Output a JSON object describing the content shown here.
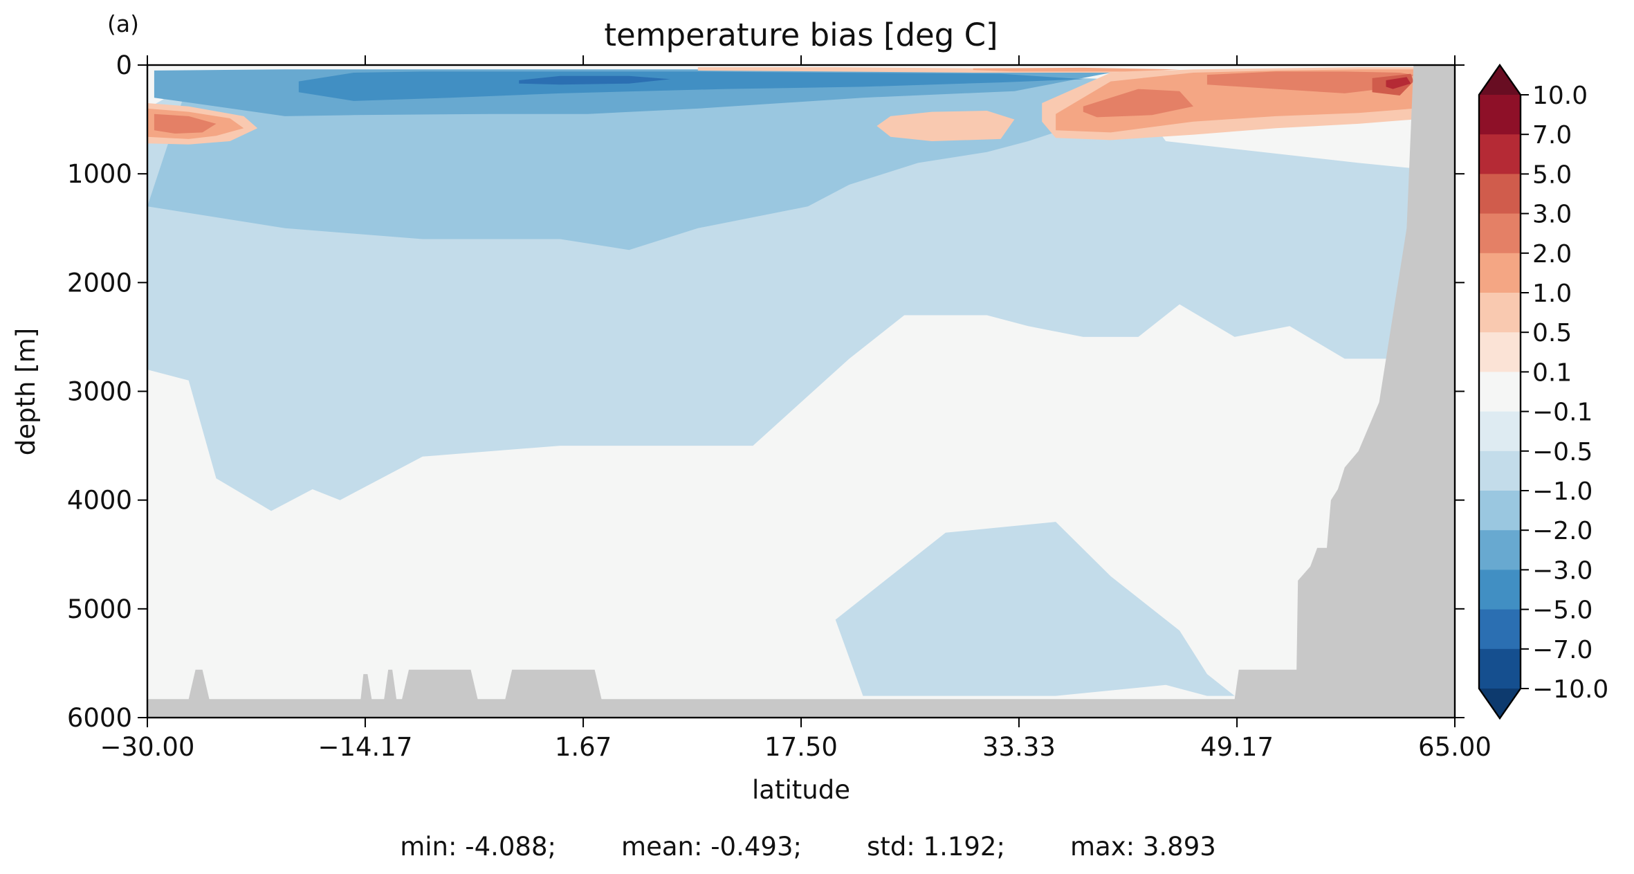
{
  "panel_label": "(a)",
  "chart_data": {
    "type": "heatmap",
    "subtype": "filled-contour",
    "title": "temperature bias [deg C]",
    "xlabel": "latitude",
    "ylabel": "depth [m]",
    "xlim": [
      -30.0,
      65.0
    ],
    "ylim": [
      6000,
      0
    ],
    "x_ticks": [
      "−30.00",
      "−14.17",
      "1.67",
      "17.50",
      "33.33",
      "49.17",
      "65.00"
    ],
    "x_tick_values": [
      -30.0,
      -14.17,
      1.67,
      17.5,
      33.33,
      49.17,
      65.0
    ],
    "y_ticks": [
      "0",
      "1000",
      "2000",
      "3000",
      "4000",
      "5000",
      "6000"
    ],
    "y_tick_values": [
      0,
      1000,
      2000,
      3000,
      4000,
      5000,
      6000
    ],
    "colorbar": {
      "levels": [
        -10.0,
        -7.0,
        -5.0,
        -3.0,
        -2.0,
        -1.0,
        -0.5,
        -0.1,
        0.1,
        0.5,
        1.0,
        2.0,
        3.0,
        5.0,
        7.0,
        10.0
      ],
      "labels": [
        "10.0",
        "7.0",
        "5.0",
        "3.0",
        "2.0",
        "1.0",
        "0.5",
        "0.1",
        "−0.1",
        "−0.5",
        "−1.0",
        "−2.0",
        "−3.0",
        "−5.0",
        "−7.0",
        "−10.0"
      ],
      "colors": [
        "#0d3a6e",
        "#154f8f",
        "#2b6fb2",
        "#418fc3",
        "#68a9d0",
        "#9ac7e0",
        "#c3dcea",
        "#deebf2",
        "#f5f6f5",
        "#fbe3d6",
        "#f9c9b0",
        "#f4a684",
        "#e48066",
        "#d05c4c",
        "#b52a35",
        "#8e1028",
        "#680d22"
      ],
      "extend": "both"
    },
    "regions": [
      {
        "bias_class": "-0.5",
        "lat": [
          -30,
          -27,
          -10,
          10,
          22,
          33,
          41,
          44,
          58,
          62,
          62,
          57,
          53,
          49,
          45,
          42,
          38,
          34,
          31,
          25,
          21,
          14,
          0,
          -10,
          -16,
          -18,
          -21,
          -25,
          -27,
          -30
        ],
        "depth": [
          400,
          180,
          150,
          150,
          150,
          150,
          180,
          700,
          900,
          950,
          2700,
          2700,
          2400,
          2500,
          2200,
          2500,
          2500,
          2400,
          2300,
          2300,
          2700,
          3500,
          3500,
          3600,
          4000,
          3900,
          4100,
          3800,
          2900,
          2800
        ]
      },
      {
        "bias_class": "-0.5",
        "lat": [
          20,
          28,
          36,
          40,
          45,
          47,
          49,
          47,
          44,
          36,
          29,
          22,
          20
        ],
        "depth": [
          5100,
          4300,
          4200,
          4700,
          5200,
          5600,
          5800,
          5800,
          5700,
          5800,
          5800,
          5800,
          5100
        ]
      },
      {
        "bias_class": "-1.0",
        "lat": [
          -30,
          -27,
          -10,
          5,
          20,
          33,
          40,
          40,
          34,
          31,
          26,
          21,
          18,
          10,
          5,
          0,
          -10,
          -20,
          -25,
          -30
        ],
        "depth": [
          1300,
          150,
          110,
          100,
          100,
          100,
          130,
          450,
          700,
          800,
          900,
          1100,
          1300,
          1500,
          1700,
          1600,
          1600,
          1500,
          1400,
          1300
        ]
      },
      {
        "bias_class": "-2.0",
        "lat": [
          -29.5,
          -20,
          -10,
          5,
          20,
          33,
          40,
          33,
          22,
          10,
          2,
          -5,
          -15,
          -20,
          -25,
          -29.5
        ],
        "depth": [
          50,
          40,
          40,
          40,
          40,
          40,
          70,
          240,
          300,
          400,
          450,
          450,
          460,
          470,
          380,
          300
        ]
      },
      {
        "bias_class": "-3.0",
        "lat": [
          -19,
          -15,
          -10,
          0,
          10,
          20,
          32,
          38,
          32,
          22,
          12,
          0,
          -8,
          -15,
          -19
        ],
        "depth": [
          150,
          70,
          60,
          60,
          60,
          70,
          80,
          130,
          160,
          200,
          220,
          260,
          300,
          330,
          250
        ]
      },
      {
        "bias_class": "-5.0",
        "lat": [
          -3,
          0,
          5,
          8,
          5,
          0,
          -3
        ],
        "depth": [
          140,
          100,
          100,
          130,
          170,
          180,
          170
        ]
      },
      {
        "bias_class": "0.5",
        "lat": [
          -30,
          -27,
          -23,
          -22,
          -24,
          -27,
          -30
        ],
        "depth": [
          350,
          380,
          470,
          580,
          700,
          730,
          720
        ]
      },
      {
        "bias_class": "1.0",
        "lat": [
          -30,
          -27,
          -24,
          -23,
          -25,
          -27,
          -30
        ],
        "depth": [
          400,
          430,
          490,
          580,
          650,
          680,
          660
        ]
      },
      {
        "bias_class": "2.0",
        "lat": [
          -29.5,
          -27,
          -25,
          -26,
          -28,
          -29.5
        ],
        "depth": [
          450,
          470,
          540,
          620,
          630,
          600
        ]
      },
      {
        "bias_class": "0.5",
        "lat": [
          24,
          27,
          31,
          33,
          32,
          27,
          24,
          23
        ],
        "depth": [
          470,
          430,
          420,
          500,
          680,
          700,
          660,
          560
        ]
      },
      {
        "bias_class": "0.5",
        "lat": [
          35,
          40,
          46,
          52,
          58,
          62,
          62,
          58,
          52,
          46,
          40,
          36,
          35
        ],
        "depth": [
          350,
          70,
          40,
          30,
          20,
          20,
          500,
          540,
          580,
          640,
          690,
          670,
          520
        ]
      },
      {
        "bias_class": "1.0",
        "lat": [
          36,
          40,
          46,
          52,
          58,
          62,
          62,
          58,
          52,
          46,
          40,
          36
        ],
        "depth": [
          450,
          150,
          70,
          50,
          40,
          40,
          400,
          440,
          470,
          520,
          620,
          600
        ]
      },
      {
        "bias_class": "2.0",
        "lat": [
          38,
          42,
          45,
          46,
          43,
          39,
          38
        ],
        "depth": [
          380,
          220,
          240,
          380,
          460,
          480,
          430
        ]
      },
      {
        "bias_class": "2.0",
        "lat": [
          47,
          52,
          57,
          61,
          62,
          61,
          57,
          52,
          47
        ],
        "depth": [
          90,
          60,
          60,
          70,
          90,
          200,
          260,
          220,
          180
        ]
      },
      {
        "bias_class": "3.0",
        "lat": [
          59,
          61.8,
          62,
          61,
          59
        ],
        "depth": [
          120,
          80,
          150,
          280,
          250
        ]
      },
      {
        "bias_class": "5.0",
        "lat": [
          60,
          61.5,
          61.8,
          60.5,
          60
        ],
        "depth": [
          140,
          110,
          170,
          220,
          200
        ]
      },
      {
        "bias_class": "0.5",
        "lat": [
          10,
          20,
          30,
          40,
          45,
          40,
          30,
          20,
          10
        ],
        "depth": [
          20,
          20,
          30,
          30,
          50,
          70,
          70,
          60,
          50
        ]
      },
      {
        "bias_class": "1.0",
        "lat": [
          30,
          38,
          45,
          41,
          33,
          30
        ],
        "depth": [
          30,
          25,
          40,
          60,
          60,
          45
        ]
      }
    ],
    "land_mask": {
      "lat": [
        -30,
        -27,
        -26.5,
        -26,
        -25.5,
        -14.5,
        -14.3,
        -14,
        -13.7,
        -12.8,
        -12.5,
        -12.2,
        -11.9,
        -11.5,
        -11,
        -6.5,
        -6,
        -4,
        -3.5,
        2.5,
        3,
        49,
        49.3,
        53.5,
        53.6,
        54.5,
        55,
        55.7,
        56,
        56.5,
        57,
        58,
        59.5,
        61.5,
        62,
        65,
        65,
        -30
      ],
      "depth": [
        5830,
        5830,
        5560,
        5560,
        5830,
        5830,
        5600,
        5600,
        5830,
        5830,
        5560,
        5560,
        5830,
        5830,
        5560,
        5560,
        5830,
        5830,
        5560,
        5560,
        5830,
        5830,
        5560,
        5560,
        4740,
        4610,
        4440,
        4440,
        4000,
        3900,
        3700,
        3550,
        3100,
        1500,
        0,
        0,
        6000,
        6000
      ]
    },
    "stats": {
      "min": -4.088,
      "mean": -0.493,
      "std": 1.192,
      "max": 3.893
    },
    "stats_text": "min: -4.088;        mean: -0.493;        std: 1.192;        max: 3.893"
  }
}
